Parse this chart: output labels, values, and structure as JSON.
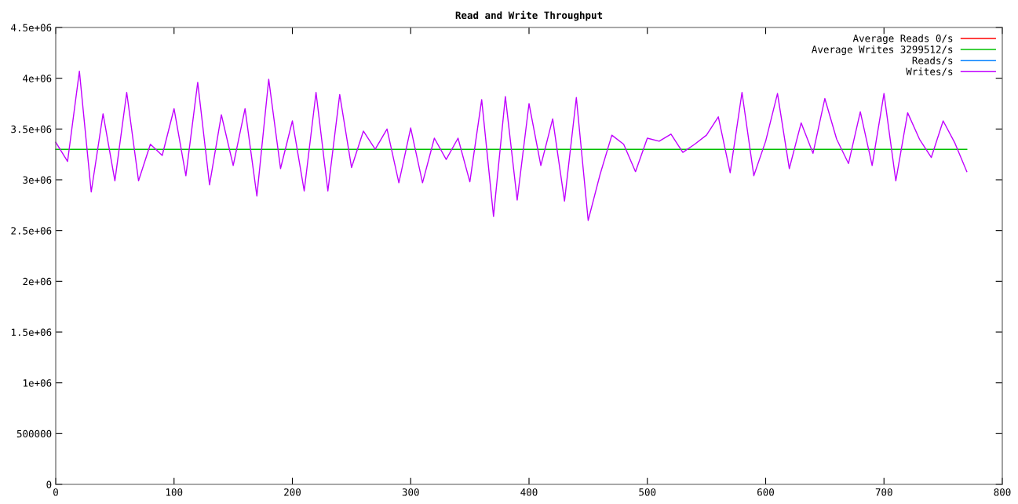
{
  "chart_data": {
    "type": "line",
    "title": "Read and Write Throughput",
    "xlim": [
      0,
      800
    ],
    "xticks": [
      0,
      100,
      200,
      300,
      400,
      500,
      600,
      700,
      800
    ],
    "ylim": [
      0,
      4500000
    ],
    "yticks": [
      {
        "value": 0,
        "label": "0"
      },
      {
        "value": 500000,
        "label": "500000"
      },
      {
        "value": 1000000,
        "label": "1e+06"
      },
      {
        "value": 1500000,
        "label": "1.5e+06"
      },
      {
        "value": 2000000,
        "label": "2e+06"
      },
      {
        "value": 2500000,
        "label": "2.5e+06"
      },
      {
        "value": 3000000,
        "label": "3e+06"
      },
      {
        "value": 3500000,
        "label": "3.5e+06"
      },
      {
        "value": 4000000,
        "label": "4e+06"
      },
      {
        "value": 4500000,
        "label": "4.5e+06"
      }
    ],
    "grid": false,
    "legend": "top right",
    "series": [
      {
        "name": "Average Reads 0/s",
        "color": "#ff0000"
      },
      {
        "name": "Average Writes 3299512/s",
        "color": "#00c000",
        "x": [
          0,
          770
        ],
        "values": [
          3300000,
          3300000
        ]
      },
      {
        "name": "Reads/s",
        "color": "#0080ff"
      },
      {
        "name": "Writes/s",
        "color": "#c000ff",
        "x": [
          0,
          10,
          20,
          30,
          40,
          50,
          60,
          70,
          80,
          90,
          100,
          110,
          120,
          130,
          140,
          150,
          160,
          170,
          180,
          190,
          200,
          210,
          220,
          230,
          240,
          250,
          260,
          270,
          280,
          290,
          300,
          310,
          320,
          330,
          340,
          350,
          360,
          370,
          380,
          390,
          400,
          410,
          420,
          430,
          440,
          450,
          460,
          470,
          480,
          490,
          500,
          510,
          520,
          530,
          540,
          550,
          560,
          570,
          580,
          590,
          600,
          610,
          620,
          630,
          640,
          650,
          660,
          670,
          680,
          690,
          700,
          710,
          720,
          730,
          740,
          750,
          760,
          770
        ],
        "values": [
          3370000,
          3180000,
          4070000,
          2880000,
          3650000,
          2990000,
          3860000,
          2990000,
          3350000,
          3240000,
          3700000,
          3040000,
          3960000,
          2950000,
          3640000,
          3140000,
          3700000,
          2840000,
          3990000,
          3110000,
          3580000,
          2890000,
          3860000,
          2890000,
          3840000,
          3120000,
          3480000,
          3300000,
          3500000,
          2970000,
          3510000,
          2970000,
          3410000,
          3200000,
          3410000,
          2980000,
          3790000,
          2640000,
          3820000,
          2800000,
          3750000,
          3140000,
          3600000,
          2790000,
          3810000,
          2600000,
          3050000,
          3440000,
          3350000,
          3080000,
          3410000,
          3380000,
          3450000,
          3270000,
          3350000,
          3440000,
          3620000,
          3070000,
          3860000,
          3040000,
          3380000,
          3850000,
          3110000,
          3560000,
          3260000,
          3800000,
          3400000,
          3160000,
          3670000,
          3140000,
          3850000,
          2990000,
          3660000,
          3400000,
          3220000,
          3580000,
          3360000,
          3080000
        ]
      }
    ]
  }
}
